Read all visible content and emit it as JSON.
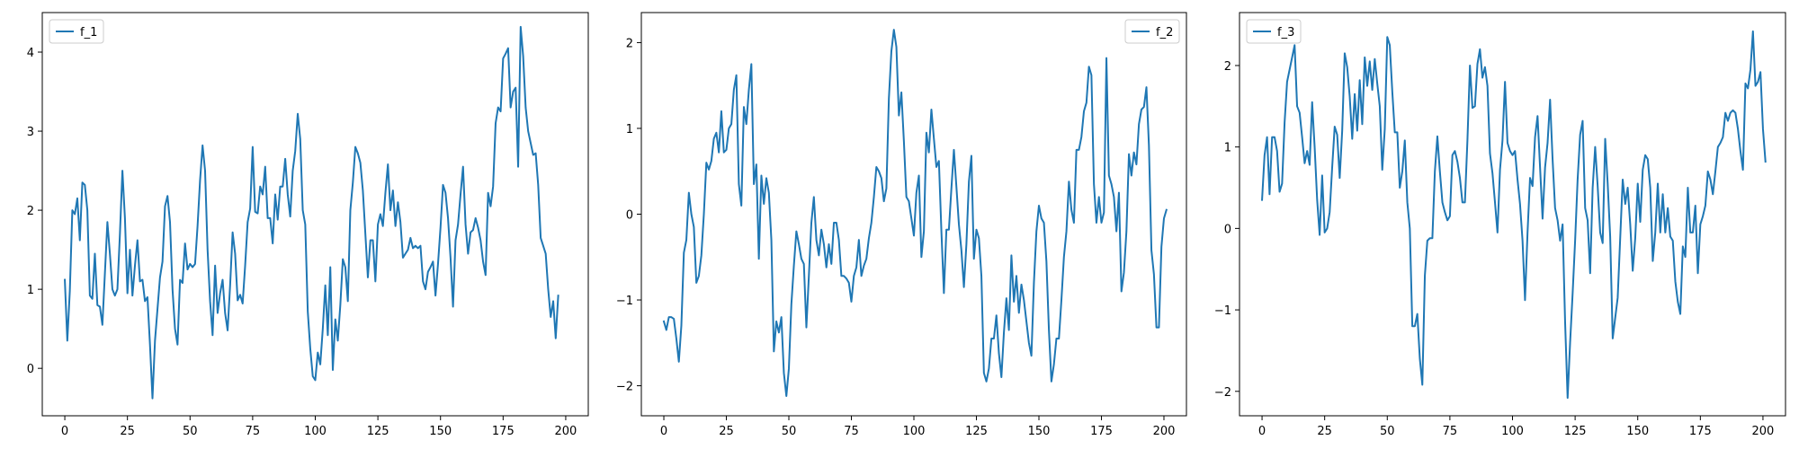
{
  "chart_data": [
    {
      "type": "line",
      "legend": "upper-left",
      "grid": false,
      "xlim": [
        -9,
        209
      ],
      "ylim": [
        -0.6,
        4.5
      ],
      "xticks": [
        0,
        25,
        50,
        75,
        100,
        125,
        150,
        175,
        200
      ],
      "yticks": [
        0,
        1,
        2,
        3,
        4
      ],
      "series": [
        {
          "name": "f_1",
          "color": "#1f77b4",
          "x_start": 0,
          "values": [
            1.12,
            0.35,
            0.98,
            2.0,
            1.95,
            2.15,
            1.62,
            2.35,
            2.32,
            2.0,
            0.92,
            0.88,
            1.45,
            0.8,
            0.78,
            0.55,
            1.2,
            1.85,
            1.45,
            1.0,
            0.92,
            1.0,
            1.7,
            2.5,
            1.9,
            0.95,
            1.5,
            0.92,
            1.3,
            1.62,
            1.1,
            1.12,
            0.85,
            0.9,
            0.3,
            -0.38,
            0.35,
            0.75,
            1.15,
            1.35,
            2.05,
            2.18,
            1.85,
            1.0,
            0.5,
            0.3,
            1.12,
            1.08,
            1.58,
            1.25,
            1.32,
            1.28,
            1.32,
            1.8,
            2.38,
            2.82,
            2.5,
            1.5,
            0.85,
            0.42,
            1.3,
            0.7,
            0.95,
            1.12,
            0.7,
            0.48,
            1.05,
            1.72,
            1.45,
            0.86,
            0.93,
            0.82,
            1.3,
            1.85,
            2.02,
            2.8,
            1.98,
            1.96,
            2.3,
            2.2,
            2.55,
            1.9,
            1.9,
            1.58,
            2.2,
            1.88,
            2.3,
            2.3,
            2.65,
            2.2,
            1.92,
            2.5,
            2.75,
            3.22,
            2.9,
            2.0,
            1.82,
            0.72,
            0.25,
            -0.1,
            -0.15,
            0.2,
            0.05,
            0.5,
            1.05,
            0.42,
            1.28,
            -0.02,
            0.62,
            0.35,
            0.8,
            1.38,
            1.28,
            0.85,
            2.0,
            2.35,
            2.8,
            2.72,
            2.6,
            2.25,
            1.7,
            1.15,
            1.62,
            1.62,
            1.1,
            1.82,
            1.95,
            1.8,
            2.22,
            2.58,
            2.0,
            2.25,
            1.8,
            2.1,
            1.85,
            1.4,
            1.45,
            1.5,
            1.65,
            1.52,
            1.55,
            1.52,
            1.55,
            1.1,
            1.0,
            1.22,
            1.28,
            1.35,
            0.92,
            1.32,
            1.78,
            2.32,
            2.22,
            1.9,
            1.4,
            0.78,
            1.62,
            1.82,
            2.2,
            2.55,
            1.82,
            1.45,
            1.72,
            1.75,
            1.9,
            1.78,
            1.62,
            1.35,
            1.18,
            2.22,
            2.05,
            2.3,
            3.1,
            3.3,
            3.25,
            3.92,
            3.98,
            4.05,
            3.3,
            3.5,
            3.55,
            2.55,
            4.32,
            3.95,
            3.3,
            3.0,
            2.85,
            2.7,
            2.72,
            2.32,
            1.65,
            1.55,
            1.45,
            1.0,
            0.65,
            0.85,
            0.38,
            0.92
          ]
        }
      ]
    },
    {
      "type": "line",
      "legend": "upper-right",
      "grid": false,
      "xlim": [
        -9,
        209
      ],
      "ylim": [
        -2.35,
        2.35
      ],
      "xticks": [
        0,
        25,
        50,
        75,
        100,
        125,
        150,
        175,
        200
      ],
      "yticks": [
        -2,
        -1,
        0,
        1,
        2
      ],
      "series": [
        {
          "name": "f_2",
          "color": "#1f77b4",
          "x_start": 0,
          "values": [
            -1.25,
            -1.35,
            -1.2,
            -1.2,
            -1.22,
            -1.45,
            -1.72,
            -1.3,
            -0.45,
            -0.3,
            0.25,
            0.0,
            -0.15,
            -0.8,
            -0.72,
            -0.48,
            0.0,
            0.6,
            0.52,
            0.62,
            0.88,
            0.95,
            0.72,
            1.2,
            0.72,
            0.75,
            1.0,
            1.05,
            1.45,
            1.62,
            0.35,
            0.1,
            1.25,
            1.05,
            1.45,
            1.75,
            0.35,
            0.58,
            -0.52,
            0.45,
            0.12,
            0.42,
            0.25,
            -0.3,
            -1.6,
            -1.25,
            -1.38,
            -1.2,
            -1.85,
            -2.12,
            -1.8,
            -1.05,
            -0.6,
            -0.2,
            -0.35,
            -0.52,
            -0.58,
            -1.32,
            -0.72,
            -0.1,
            0.2,
            -0.3,
            -0.48,
            -0.18,
            -0.35,
            -0.62,
            -0.35,
            -0.58,
            -0.1,
            -0.1,
            -0.3,
            -0.72,
            -0.72,
            -0.75,
            -0.8,
            -1.02,
            -0.72,
            -0.62,
            -0.3,
            -0.72,
            -0.6,
            -0.52,
            -0.28,
            -0.1,
            0.2,
            0.55,
            0.5,
            0.42,
            0.15,
            0.3,
            1.35,
            1.9,
            2.15,
            1.95,
            1.15,
            1.42,
            0.85,
            0.2,
            0.15,
            -0.05,
            -0.25,
            0.25,
            0.45,
            -0.5,
            -0.2,
            0.95,
            0.72,
            1.22,
            0.88,
            0.55,
            0.62,
            -0.2,
            -0.92,
            -0.18,
            -0.18,
            0.3,
            0.75,
            0.32,
            -0.12,
            -0.42,
            -0.85,
            -0.35,
            0.38,
            0.68,
            -0.52,
            -0.18,
            -0.28,
            -0.72,
            -1.85,
            -1.95,
            -1.8,
            -1.45,
            -1.45,
            -1.18,
            -1.62,
            -1.9,
            -1.38,
            -0.98,
            -1.35,
            -0.48,
            -1.02,
            -0.72,
            -1.15,
            -0.82,
            -1.0,
            -1.25,
            -1.5,
            -1.65,
            -0.8,
            -0.2,
            0.1,
            -0.05,
            -0.1,
            -0.55,
            -1.35,
            -1.95,
            -1.75,
            -1.45,
            -1.45,
            -1.0,
            -0.5,
            -0.2,
            0.38,
            0.05,
            -0.1,
            0.75,
            0.75,
            0.9,
            1.2,
            1.3,
            1.72,
            1.62,
            0.35,
            -0.1,
            0.2,
            -0.1,
            0.02,
            1.82,
            0.45,
            0.35,
            0.2,
            -0.2,
            0.25,
            -0.9,
            -0.68,
            -0.2,
            0.7,
            0.45,
            0.72,
            0.58,
            1.05,
            1.22,
            1.25,
            1.48,
            0.8,
            -0.42,
            -0.7,
            -1.32,
            -1.32,
            -0.38,
            -0.05,
            0.05
          ]
        }
      ]
    },
    {
      "type": "line",
      "legend": "upper-left",
      "grid": false,
      "xlim": [
        -9,
        209
      ],
      "ylim": [
        -2.3,
        2.65
      ],
      "xticks": [
        0,
        25,
        50,
        75,
        100,
        125,
        150,
        175,
        200
      ],
      "yticks": [
        -2,
        -1,
        0,
        1,
        2
      ],
      "series": [
        {
          "name": "f_3",
          "color": "#1f77b4",
          "x_start": 0,
          "values": [
            0.35,
            0.9,
            1.12,
            0.42,
            1.12,
            1.12,
            0.95,
            0.45,
            0.55,
            1.3,
            1.8,
            1.95,
            2.1,
            2.25,
            1.5,
            1.42,
            1.12,
            0.8,
            0.95,
            0.78,
            1.55,
            1.0,
            0.35,
            -0.08,
            0.65,
            -0.05,
            0.0,
            0.2,
            0.75,
            1.25,
            1.15,
            0.62,
            1.2,
            2.15,
            1.98,
            1.62,
            1.1,
            1.65,
            1.2,
            1.82,
            1.28,
            2.1,
            1.75,
            2.05,
            1.7,
            2.08,
            1.78,
            1.5,
            0.72,
            1.22,
            2.35,
            2.25,
            1.68,
            1.18,
            1.18,
            0.5,
            0.7,
            1.08,
            0.32,
            0.0,
            -1.2,
            -1.2,
            -1.05,
            -1.6,
            -1.92,
            -0.58,
            -0.15,
            -0.12,
            -0.12,
            0.7,
            1.13,
            0.7,
            0.32,
            0.2,
            0.1,
            0.15,
            0.9,
            0.95,
            0.82,
            0.62,
            0.32,
            0.32,
            1.08,
            2.0,
            1.48,
            1.5,
            2.02,
            2.2,
            1.85,
            1.98,
            1.75,
            0.92,
            0.68,
            0.32,
            -0.05,
            0.72,
            1.08,
            1.8,
            1.05,
            0.95,
            0.9,
            0.95,
            0.6,
            0.3,
            -0.15,
            -0.88,
            -0.05,
            0.62,
            0.52,
            1.12,
            1.38,
            0.75,
            0.12,
            0.75,
            1.05,
            1.58,
            0.85,
            0.25,
            0.1,
            -0.15,
            0.05,
            -1.15,
            -2.08,
            -1.4,
            -0.8,
            -0.15,
            0.6,
            1.15,
            1.32,
            0.25,
            0.1,
            -0.55,
            0.5,
            1.0,
            0.52,
            -0.05,
            -0.18,
            1.1,
            0.55,
            -0.1,
            -1.35,
            -1.1,
            -0.85,
            -0.12,
            0.6,
            0.3,
            0.5,
            0.05,
            -0.52,
            -0.12,
            0.55,
            0.08,
            0.72,
            0.9,
            0.85,
            0.5,
            -0.4,
            -0.05,
            0.55,
            -0.05,
            0.42,
            -0.05,
            0.25,
            -0.1,
            -0.15,
            -0.65,
            -0.9,
            -1.05,
            -0.22,
            -0.35,
            0.5,
            -0.05,
            -0.05,
            0.28,
            -0.55,
            0.05,
            0.15,
            0.28,
            0.7,
            0.6,
            0.42,
            0.7,
            1.0,
            1.05,
            1.12,
            1.42,
            1.32,
            1.42,
            1.45,
            1.42,
            1.22,
            0.95,
            0.72,
            1.78,
            1.72,
            1.95,
            2.42,
            1.75,
            1.8,
            1.92,
            1.22,
            0.82
          ]
        }
      ]
    }
  ]
}
